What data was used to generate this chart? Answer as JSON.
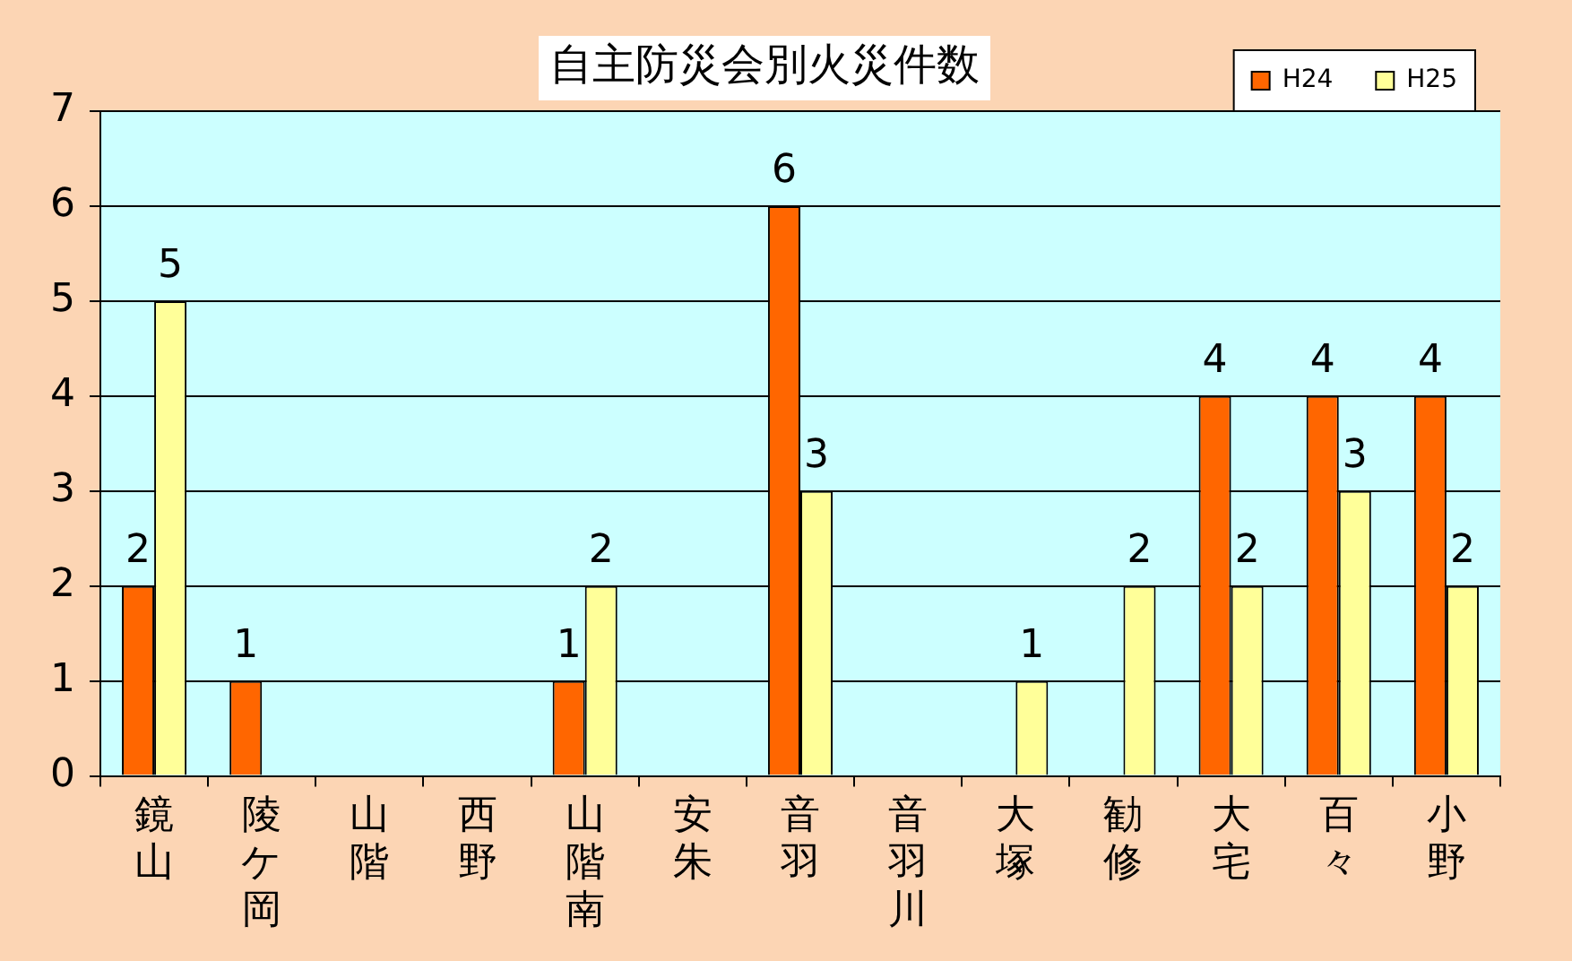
{
  "chart_data": {
    "type": "bar",
    "title": "自主防災会別火災件数",
    "categories": [
      "鏡山",
      "陵ケ岡",
      "山階",
      "西野",
      "山階南",
      "安朱",
      "音羽",
      "音羽川",
      "大塚",
      "勧修",
      "大宅",
      "百々",
      "小野"
    ],
    "series": [
      {
        "name": "H24",
        "color": "#ff6600",
        "values": [
          2,
          1,
          0,
          0,
          1,
          0,
          6,
          0,
          0,
          0,
          4,
          4,
          4
        ],
        "value_labels": [
          "2",
          "1",
          null,
          null,
          "1",
          null,
          "6",
          null,
          null,
          null,
          "4",
          "4",
          "4"
        ]
      },
      {
        "name": "H25",
        "color": "#ffff99",
        "values": [
          5,
          0,
          0,
          0,
          2,
          0,
          3,
          0,
          1,
          2,
          2,
          3,
          2
        ],
        "value_labels": [
          "5",
          null,
          null,
          null,
          "2",
          null,
          "3",
          null,
          "1",
          "2",
          "2",
          "3",
          "2"
        ]
      }
    ],
    "ylim": [
      0,
      7
    ],
    "yticks": [
      0,
      1,
      2,
      3,
      4,
      5,
      6,
      7
    ],
    "grid": "y",
    "legend": "top right"
  }
}
